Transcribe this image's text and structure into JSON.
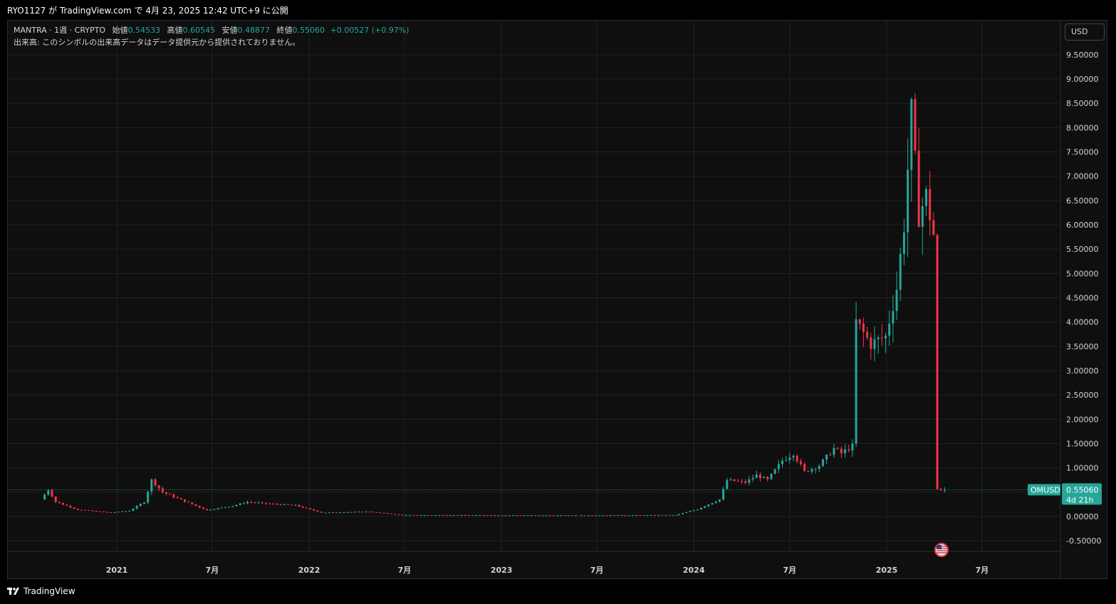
{
  "header": {
    "publish_line": "RYO1127 が TradingView.com で 4月 23, 2025 12:42 UTC+9 に公開"
  },
  "legend": {
    "symbol": "MANTRA · 1週 · CRYPTO",
    "open_label": "始値",
    "open_value": "0.54533",
    "high_label": "高値",
    "high_value": "0.60545",
    "low_label": "安値",
    "low_value": "0.48877",
    "close_label": "終値",
    "close_value": "0.55060",
    "change": "+0.00527 (+0.97%)",
    "volume_note": "出来高: このシンボルの出来高データはデータ提供元から提供されておりません。"
  },
  "currency_button": "USD",
  "footer": {
    "brand": "TradingView"
  },
  "price_tag": {
    "symbol": "OMUSD",
    "price": "0.55060",
    "countdown": "4d 21h"
  },
  "colors": {
    "up": "#26a69a",
    "down": "#f23645",
    "background": "#0f0f0f",
    "grid": "#1f2229",
    "text": "#d1d4dc"
  },
  "icons": {
    "event_marker": "us-flag-icon",
    "logo": "tradingview-logo-icon"
  },
  "chart_data": {
    "type": "candlestick",
    "interval": "1 week",
    "currency": "USD",
    "last_price": 0.5506,
    "y_axis": {
      "range": [
        -0.7,
        10.0
      ],
      "ticks": [
        "-0.50000",
        "0.00000",
        "0.50000",
        "1.00000",
        "1.50000",
        "2.00000",
        "2.50000",
        "3.00000",
        "3.50000",
        "4.00000",
        "4.50000",
        "5.00000",
        "5.50000",
        "6.00000",
        "6.50000",
        "7.00000",
        "7.50000",
        "8.00000",
        "8.50000",
        "9.00000",
        "9.50000"
      ]
    },
    "x_axis": {
      "range": [
        "2020-08-01",
        "2025-10-31"
      ],
      "ticks": [
        {
          "date": "2021-01-01",
          "label": "2021"
        },
        {
          "date": "2021-07-01",
          "label": "7月"
        },
        {
          "date": "2022-01-01",
          "label": "2022"
        },
        {
          "date": "2022-07-01",
          "label": "7月"
        },
        {
          "date": "2023-01-01",
          "label": "2023"
        },
        {
          "date": "2023-07-01",
          "label": "7月"
        },
        {
          "date": "2024-01-01",
          "label": "2024"
        },
        {
          "date": "2024-07-01",
          "label": "7月"
        },
        {
          "date": "2025-01-01",
          "label": "2025"
        },
        {
          "date": "2025-07-01",
          "label": "7月"
        }
      ]
    },
    "anchors": [
      {
        "date": "2020-08-17",
        "price": 0.35
      },
      {
        "date": "2020-08-31",
        "price": 0.55
      },
      {
        "date": "2020-09-14",
        "price": 0.3
      },
      {
        "date": "2020-10-26",
        "price": 0.14
      },
      {
        "date": "2020-12-28",
        "price": 0.08
      },
      {
        "date": "2021-02-01",
        "price": 0.12
      },
      {
        "date": "2021-03-01",
        "price": 0.3
      },
      {
        "date": "2021-03-15",
        "price": 0.75
      },
      {
        "date": "2021-04-05",
        "price": 0.5
      },
      {
        "date": "2021-05-24",
        "price": 0.28
      },
      {
        "date": "2021-06-28",
        "price": 0.13
      },
      {
        "date": "2021-08-16",
        "price": 0.22
      },
      {
        "date": "2021-09-13",
        "price": 0.3
      },
      {
        "date": "2021-10-25",
        "price": 0.26
      },
      {
        "date": "2021-12-13",
        "price": 0.23
      },
      {
        "date": "2022-02-01",
        "price": 0.08
      },
      {
        "date": "2022-05-02",
        "price": 0.1
      },
      {
        "date": "2022-07-04",
        "price": 0.03
      },
      {
        "date": "2023-06-01",
        "price": 0.025
      },
      {
        "date": "2023-12-04",
        "price": 0.03
      },
      {
        "date": "2024-01-15",
        "price": 0.15
      },
      {
        "date": "2024-02-26",
        "price": 0.35
      },
      {
        "date": "2024-03-11",
        "price": 0.75
      },
      {
        "date": "2024-04-15",
        "price": 0.7
      },
      {
        "date": "2024-05-06",
        "price": 0.85
      },
      {
        "date": "2024-05-27",
        "price": 0.75
      },
      {
        "date": "2024-06-24",
        "price": 1.15
      },
      {
        "date": "2024-07-15",
        "price": 1.3
      },
      {
        "date": "2024-08-05",
        "price": 0.92
      },
      {
        "date": "2024-09-02",
        "price": 1.05
      },
      {
        "date": "2024-09-30",
        "price": 1.4
      },
      {
        "date": "2024-10-14",
        "price": 1.3
      },
      {
        "date": "2024-11-04",
        "price": 1.45
      },
      {
        "date": "2024-11-11",
        "price": 4.0
      },
      {
        "date": "2024-12-09",
        "price": 3.55
      },
      {
        "date": "2025-01-06",
        "price": 3.7
      },
      {
        "date": "2025-01-27",
        "price": 4.7
      },
      {
        "date": "2025-02-10",
        "price": 6.0
      },
      {
        "date": "2025-02-24",
        "price": 8.3
      },
      {
        "date": "2025-03-10",
        "price": 6.2
      },
      {
        "date": "2025-03-24",
        "price": 6.6
      },
      {
        "date": "2025-04-07",
        "price": 5.8
      },
      {
        "date": "2025-04-14",
        "price": 0.55
      },
      {
        "date": "2025-04-21",
        "price": 0.5506
      }
    ]
  }
}
